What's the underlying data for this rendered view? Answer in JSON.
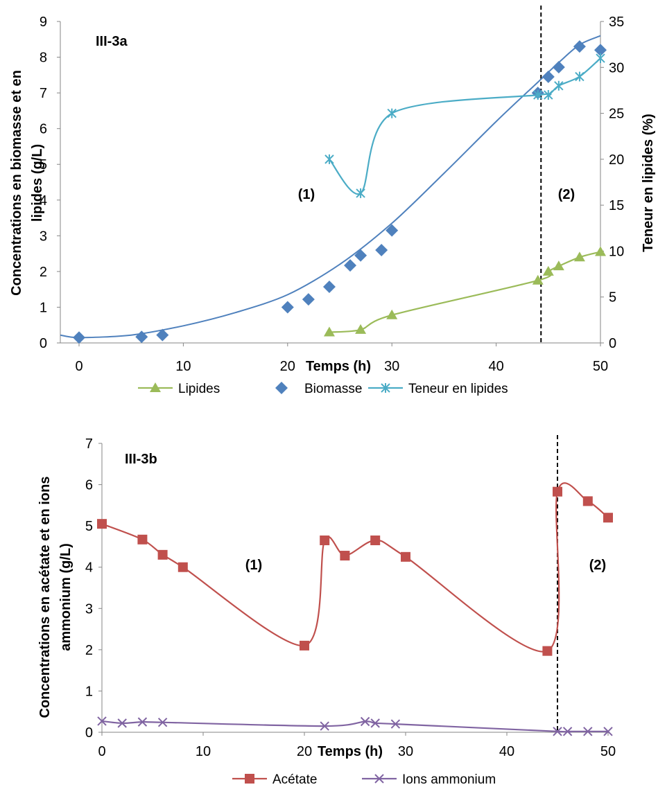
{
  "chart_data": [
    {
      "type": "scatter",
      "label": "III-3a",
      "xlabel": "Temps (h)",
      "ylabel": "Concentrations en biomasse et en lipides (g/L)",
      "y2label": "Teneur en lipides (%)",
      "xlim": [
        0,
        50
      ],
      "ylim": [
        0,
        9
      ],
      "y2lim": [
        0,
        35
      ],
      "xticks": [
        "0",
        "10",
        "20",
        "30",
        "40",
        "50"
      ],
      "yticks": [
        "0",
        "1",
        "2",
        "3",
        "4",
        "5",
        "6",
        "7",
        "8",
        "9"
      ],
      "y2ticks": [
        "0",
        "5",
        "10",
        "15",
        "20",
        "25",
        "30",
        "35"
      ],
      "phase_line_x": 44.3,
      "phase_labels": [
        "(1)",
        "(2)"
      ],
      "series": [
        {
          "name": "Lipides",
          "axis": "left",
          "color": "#9bbb59",
          "marker": "triangle",
          "x": [
            24,
            27,
            30,
            44,
            45,
            46,
            48,
            50
          ],
          "y": [
            0.3,
            0.37,
            0.78,
            1.75,
            2.0,
            2.15,
            2.4,
            2.55
          ]
        },
        {
          "name": "Biomasse",
          "axis": "left",
          "color": "#4f81bd",
          "marker": "diamond",
          "x": [
            0,
            6,
            8,
            20,
            22,
            24,
            26,
            27,
            29,
            30,
            44,
            45,
            46,
            48,
            50
          ],
          "y": [
            0.15,
            0.17,
            0.22,
            1.0,
            1.22,
            1.57,
            2.17,
            2.45,
            2.6,
            3.15,
            7.0,
            7.45,
            7.72,
            8.3,
            8.2
          ]
        },
        {
          "name": "Teneur en lipides",
          "axis": "right",
          "color": "#4bacc6",
          "marker": "star",
          "x": [
            24,
            27,
            30,
            44,
            45,
            46,
            48,
            50
          ],
          "y": [
            20,
            16.3,
            25,
            27,
            27,
            28,
            29,
            31
          ]
        }
      ],
      "biomass_fit": {
        "color": "#4f81bd",
        "x": [
          -2,
          0,
          5,
          10,
          15,
          20,
          25,
          30,
          35,
          40,
          44,
          46,
          48,
          50
        ],
        "y": [
          0.22,
          0.15,
          0.22,
          0.48,
          0.85,
          1.35,
          2.2,
          3.35,
          4.75,
          6.2,
          7.3,
          7.85,
          8.35,
          8.6
        ]
      }
    },
    {
      "type": "line",
      "label": "III-3b",
      "xlabel": "Temps (h)",
      "ylabel": "Concentrations en acétate et en ions ammonium (g/L)",
      "xlim": [
        0,
        50
      ],
      "ylim": [
        0,
        7
      ],
      "xticks": [
        "0",
        "10",
        "20",
        "30",
        "40",
        "50"
      ],
      "yticks": [
        "0",
        "1",
        "2",
        "3",
        "4",
        "5",
        "6",
        "7"
      ],
      "phase_line_x": 45,
      "phase_labels": [
        "(1)",
        "(2)"
      ],
      "series": [
        {
          "name": "Acétate",
          "color": "#c0504d",
          "marker": "square",
          "x": [
            0,
            4,
            6,
            8,
            20,
            22,
            24,
            27,
            30,
            44,
            45,
            48,
            50
          ],
          "y": [
            5.05,
            4.67,
            4.3,
            4.0,
            2.1,
            4.65,
            4.28,
            4.65,
            4.25,
            1.97,
            5.83,
            5.6,
            5.2
          ]
        },
        {
          "name": "Ions ammonium",
          "color": "#8064a2",
          "marker": "x",
          "x": [
            0,
            2,
            4,
            6,
            22,
            26,
            27,
            29,
            45,
            46,
            48,
            50
          ],
          "y": [
            0.27,
            0.22,
            0.25,
            0.24,
            0.15,
            0.26,
            0.22,
            0.2,
            0.02,
            0.02,
            0.02,
            0.02
          ]
        }
      ]
    }
  ]
}
